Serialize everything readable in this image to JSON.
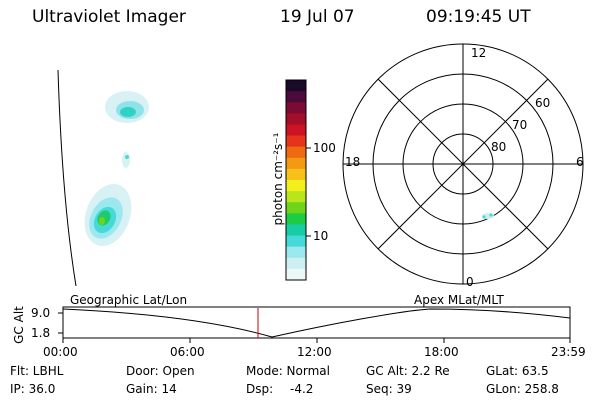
{
  "header": {
    "instrument": "Ultraviolet Imager",
    "date": "19 Jul 07",
    "time": "09:19:45 UT"
  },
  "colorbar": {
    "label": "photon cm⁻²s⁻¹",
    "ticks": [
      "100",
      "10"
    ],
    "colors": [
      "#ecf7f8",
      "#cdeff2",
      "#9be8ee",
      "#45d9d7",
      "#18cda3",
      "#1ecb45",
      "#6fd51a",
      "#b9e51a",
      "#f2ef1a",
      "#f6c11a",
      "#f39a13",
      "#ef6a10",
      "#e6331b",
      "#cc1324",
      "#a30e2b",
      "#7a0b33",
      "#4b0a39",
      "#1a0a2a"
    ]
  },
  "polar": {
    "mlt_labels": [
      "12",
      "18",
      "6",
      "0"
    ],
    "lat_labels": [
      "60",
      "70",
      "80"
    ]
  },
  "timeline": {
    "left_title": "Geographic Lat/Lon",
    "right_title": "Apex MLat/MLT",
    "axis_label": "GC Alt",
    "y_ticks": [
      "9.0",
      "1.8"
    ],
    "x_ticks": [
      "00:00",
      "06:00",
      "12:00",
      "18:00",
      "23:59"
    ],
    "current_marker_color": "#cc0000"
  },
  "info": {
    "row1": [
      "Flt: LBHL",
      "Door: Open",
      "Mode: Normal",
      "GC Alt: 2.2 Re",
      "GLat: 63.5"
    ],
    "row2": [
      "IP: 36.0",
      "Gain: 14",
      "Dsp:",
      "-4.2",
      "Seq: 39",
      "GLon: 258.8"
    ]
  }
}
